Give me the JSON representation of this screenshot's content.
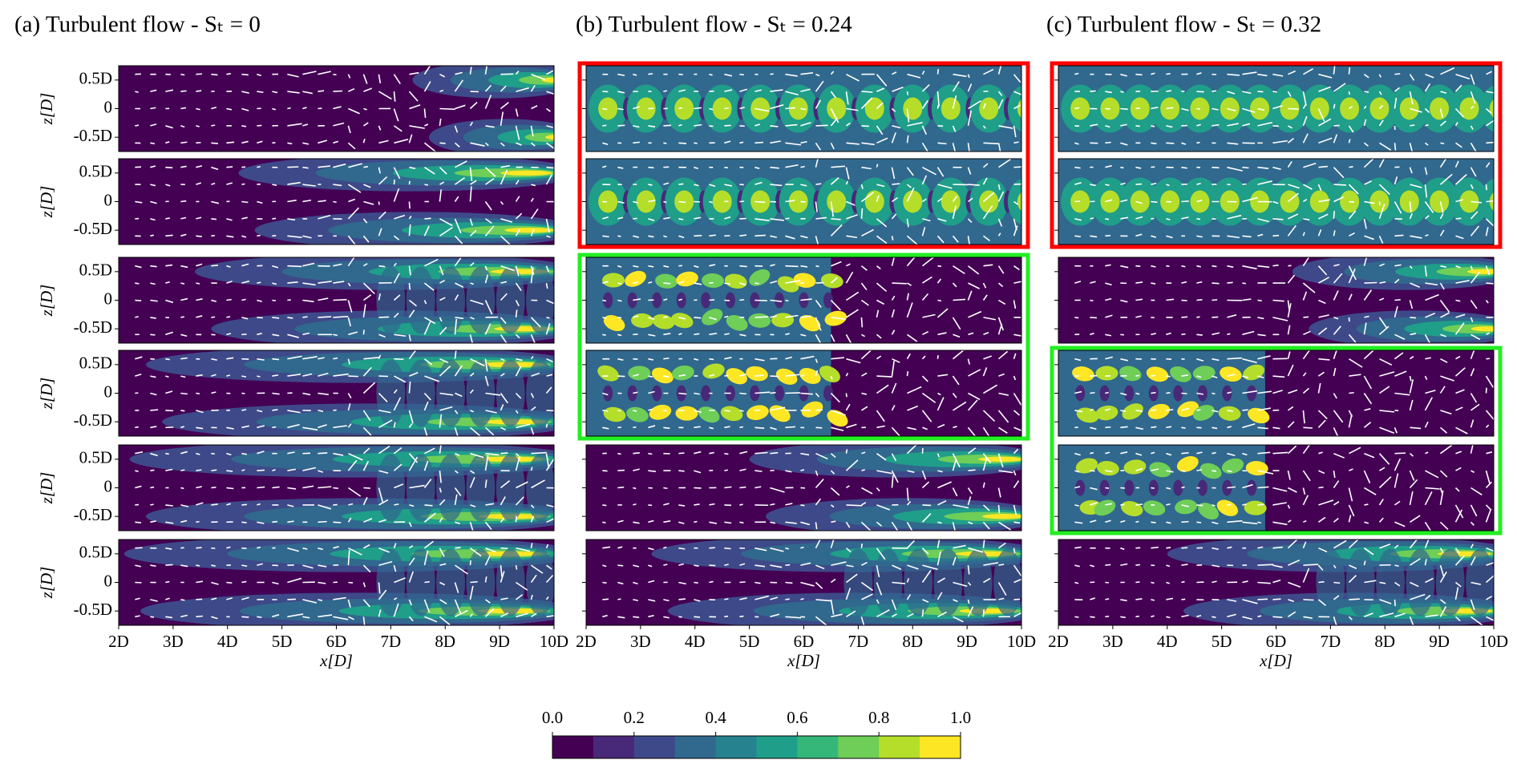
{
  "chart_data": {
    "type": "contour-panels",
    "panels": [
      {
        "title": "(a) Turbulent flow - Sₜ = 0"
      },
      {
        "title": "(b) Turbulent flow - Sₜ = 0.24"
      },
      {
        "title": "(c) Turbulent flow - Sₜ = 0.32"
      }
    ],
    "xlabel": "x[D]",
    "ylabel": "z[D]",
    "xlim": [
      2,
      10
    ],
    "xticks": [
      {
        "value": 2,
        "label": "2D"
      },
      {
        "value": 3,
        "label": "3D"
      },
      {
        "value": 4,
        "label": "4D"
      },
      {
        "value": 5,
        "label": "5D"
      },
      {
        "value": 6,
        "label": "6D"
      },
      {
        "value": 7,
        "label": "7D"
      },
      {
        "value": 8,
        "label": "8D"
      },
      {
        "value": 9,
        "label": "9D"
      },
      {
        "value": 10,
        "label": "10D"
      }
    ],
    "ylim": [
      -0.75,
      0.75
    ],
    "yticks": [
      {
        "value": 0.5,
        "label": "0.5D"
      },
      0,
      {
        "value": -0.5,
        "label": "-0.5D"
      }
    ],
    "colorbar": {
      "lim": [
        0,
        1
      ],
      "ticks": [
        {
          "value": 0,
          "label": "0.0"
        },
        0.2,
        0.4,
        0.6,
        0.8,
        {
          "value": 1,
          "label": "1.0"
        }
      ],
      "colors": [
        "#440154",
        "#482878",
        "#3e4989",
        "#31688e",
        "#26828e",
        "#1f9e89",
        "#35b779",
        "#6ece58",
        "#b5de2b",
        "#fde725"
      ]
    }
  }
}
